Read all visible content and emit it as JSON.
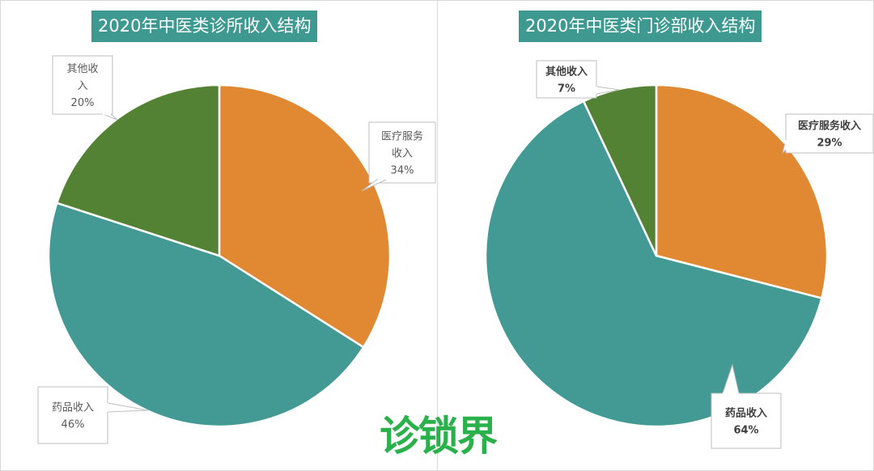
{
  "chart_data": [
    {
      "type": "pie",
      "title": "2020年中医类诊所收入结构",
      "slices": [
        {
          "label": "医疗服务收入",
          "value": 34,
          "value_label": "34%",
          "color": "#e08832"
        },
        {
          "label": "药品收入",
          "value": 46,
          "value_label": "46%",
          "color": "#439a94"
        },
        {
          "label": "其他收入",
          "value": 20,
          "value_label": "20%",
          "color": "#548235"
        }
      ]
    },
    {
      "type": "pie",
      "title": "2020年中医类门诊部收入结构",
      "slices": [
        {
          "label": "医疗服务收入",
          "value": 29,
          "value_label": "29%",
          "color": "#e08832"
        },
        {
          "label": "药品收入",
          "value": 64,
          "value_label": "64%",
          "color": "#439a94"
        },
        {
          "label": "其他收入",
          "value": 7,
          "value_label": "7%",
          "color": "#548235"
        }
      ]
    }
  ],
  "watermark": "诊锁界"
}
